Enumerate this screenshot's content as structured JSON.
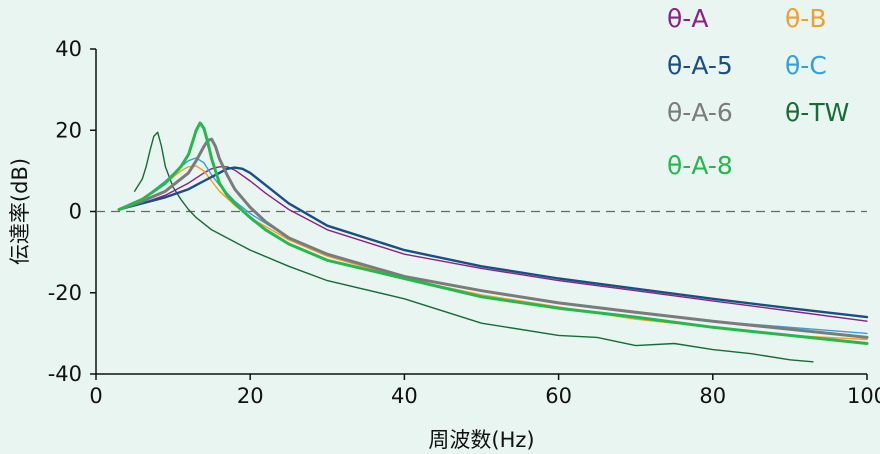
{
  "chart_data": {
    "type": "line",
    "xlabel": "周波数(Hz)",
    "ylabel": "伝達率(dB)",
    "xlim": [
      0,
      100
    ],
    "ylim": [
      -40,
      40
    ],
    "x_ticks": [
      "0",
      "20",
      "40",
      "60",
      "80",
      "100"
    ],
    "y_ticks": [
      "40",
      "20",
      "0",
      "-20",
      "-40"
    ],
    "reference_line": {
      "y": 0,
      "style": "dashed"
    },
    "legend_position": "top-right",
    "series": [
      {
        "name": "θ-A",
        "color": "#8e1f83",
        "x": [
          3,
          6,
          9,
          12,
          14,
          15,
          16,
          17,
          18,
          20,
          22,
          25,
          30,
          40,
          50,
          60,
          70,
          80,
          90,
          100
        ],
        "y": [
          0.5,
          2,
          4,
          7,
          9.5,
          10.5,
          11,
          11,
          10.2,
          7.5,
          4.5,
          0.5,
          -4.5,
          -10.5,
          -14,
          -17,
          -19.5,
          -22,
          -24.5,
          -27
        ]
      },
      {
        "name": "θ-B",
        "color": "#f0a02a",
        "x": [
          3,
          6,
          9,
          11,
          12,
          13,
          14,
          15,
          16,
          18,
          20,
          25,
          30,
          40,
          50,
          60,
          70,
          80,
          90,
          100
        ],
        "y": [
          0.5,
          3,
          7,
          10,
          11,
          11.2,
          10,
          7.5,
          5,
          1.5,
          -1.5,
          -7,
          -11,
          -16.5,
          -20.5,
          -23.5,
          -26.5,
          -28.5,
          -30.5,
          -31.5
        ]
      },
      {
        "name": "θ-A-5",
        "color": "#1a4f85",
        "x": [
          3,
          6,
          9,
          12,
          14,
          16,
          17,
          18,
          19,
          20,
          22,
          25,
          30,
          40,
          50,
          60,
          70,
          80,
          90,
          100
        ],
        "y": [
          0.5,
          2,
          3.5,
          5.5,
          7.5,
          9.5,
          10.5,
          10.8,
          10.5,
          9.5,
          6.5,
          2,
          -3.5,
          -9.5,
          -13.5,
          -16.5,
          -19,
          -21.5,
          -23.8,
          -26
        ]
      },
      {
        "name": "θ-C",
        "color": "#32a0dd",
        "x": [
          5,
          7,
          9,
          11,
          12,
          13,
          14,
          15,
          16,
          18,
          20,
          25,
          30,
          40,
          50,
          60,
          70,
          80,
          90,
          100
        ],
        "y": [
          2,
          4.5,
          7.5,
          11,
          12.5,
          13.2,
          12,
          9,
          6.5,
          2.5,
          -0.5,
          -6.5,
          -10.5,
          -16,
          -19.5,
          -22.5,
          -25,
          -27,
          -28.5,
          -30
        ]
      },
      {
        "name": "θ-A-6",
        "color": "#7b7b7b",
        "x": [
          3,
          6,
          9,
          12,
          13,
          14,
          14.5,
          15,
          15.5,
          16,
          17,
          18,
          20,
          22,
          25,
          30,
          40,
          50,
          60,
          70,
          80,
          90,
          100
        ],
        "y": [
          0.5,
          2.5,
          5,
          9.5,
          12.5,
          16,
          17.5,
          17.8,
          16,
          13,
          9,
          5.5,
          1,
          -2.5,
          -6.5,
          -10.5,
          -16,
          -19.5,
          -22.5,
          -24.8,
          -27,
          -29,
          -31
        ]
      },
      {
        "name": "θ-TW",
        "color": "#176b36",
        "x": [
          5,
          6,
          6.5,
          7,
          7.5,
          8,
          8.5,
          9,
          10,
          11,
          12,
          13,
          15,
          18,
          20,
          25,
          30,
          40,
          50,
          60,
          65,
          70,
          75,
          80,
          85,
          90,
          93
        ],
        "y": [
          5,
          8,
          11,
          15,
          18.5,
          19.5,
          16,
          11,
          6,
          3,
          0.5,
          -1.5,
          -4.5,
          -7.5,
          -9.5,
          -13.5,
          -17,
          -21.5,
          -27.5,
          -30.5,
          -31,
          -33,
          -32.5,
          -34,
          -35,
          -36.5,
          -37
        ]
      },
      {
        "name": "θ-A-8",
        "color": "#27b84c",
        "x": [
          3,
          6,
          9,
          11,
          12,
          12.5,
          13,
          13.5,
          14,
          14.5,
          15,
          16,
          17,
          18,
          20,
          22,
          25,
          30,
          40,
          50,
          60,
          70,
          80,
          90,
          100
        ],
        "y": [
          0.5,
          3,
          7,
          11,
          14,
          17,
          20,
          21.8,
          20.5,
          17,
          13,
          7,
          4,
          2,
          -1.5,
          -4.5,
          -8,
          -12,
          -16.5,
          -21,
          -23.8,
          -26,
          -28.5,
          -30.5,
          -32.5
        ]
      }
    ]
  }
}
